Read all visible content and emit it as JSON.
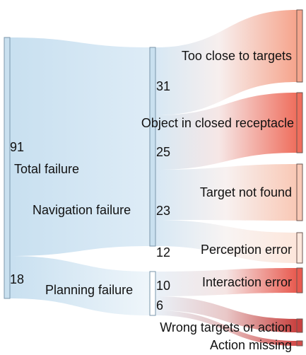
{
  "nodes": [
    {
      "id": "total",
      "label": "Total failure"
    },
    {
      "id": "navigation",
      "label": "Navigation failure"
    },
    {
      "id": "planning",
      "label": "Planning failure"
    },
    {
      "id": "too_close",
      "label": "Too close to targets"
    },
    {
      "id": "closed_receptacle",
      "label": "Object in closed receptacle"
    },
    {
      "id": "not_found",
      "label": "Target not found"
    },
    {
      "id": "perception",
      "label": "Perception error"
    },
    {
      "id": "interaction",
      "label": "Interaction error"
    },
    {
      "id": "wrong_targets",
      "label": "Wrong targets or action"
    },
    {
      "id": "action_missing",
      "label": "Action missing"
    }
  ],
  "links": [
    {
      "source": "total",
      "target": "navigation",
      "value": 91
    },
    {
      "source": "total",
      "target": "planning",
      "value": 18
    },
    {
      "source": "navigation",
      "target": "too_close",
      "value": 31
    },
    {
      "source": "navigation",
      "target": "closed_receptacle",
      "value": 25
    },
    {
      "source": "navigation",
      "target": "not_found",
      "value": 23
    },
    {
      "source": "navigation",
      "target": "perception",
      "value": 12
    },
    {
      "source": "planning",
      "target": "interaction",
      "value": 10
    },
    {
      "source": "planning",
      "target": "wrong_targets",
      "value": 6
    },
    {
      "source": "planning",
      "target": "action_missing",
      "value": 2
    }
  ],
  "value_labels": [
    "91",
    "18",
    "31",
    "25",
    "23",
    "12",
    "10",
    "6"
  ],
  "colors": {
    "left_node": "#c9e0ef",
    "left_node_border": "#7a96ab",
    "flow_blue": "#d3e6f3",
    "too_close": "#f5a68e",
    "closed_receptacle": "#ef6e5d",
    "not_found": "#f9c9b6",
    "perception": "#fde8dd",
    "interaction": "#e85a4f",
    "wrong_targets": "#c8413f",
    "action_missing": "#d24a49"
  }
}
